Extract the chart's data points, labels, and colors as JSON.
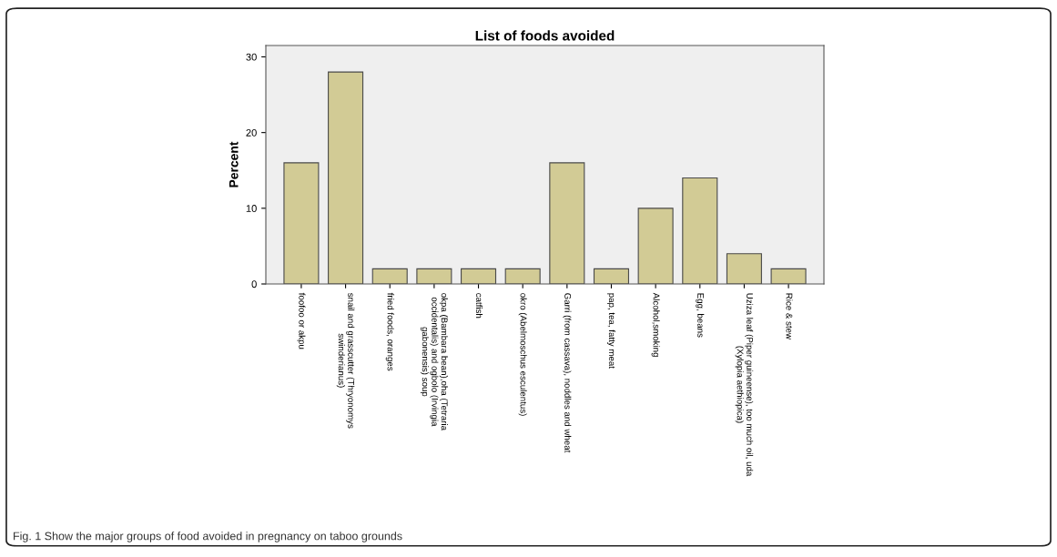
{
  "chart_data": {
    "type": "bar",
    "title": "List of foods avoided",
    "ylabel": "Percent",
    "categories": [
      "foofoo or akpu",
      "snail and grasscutter (Thryonomys\nswinderianus)",
      "fried foods, oranges",
      "okpa (Bambara bean),oha (Tetraria\noccidentalis) and ogbolo (Irvingia\ngabonensis) soup",
      "catfish",
      "okro (Abelmoschus esculentus)",
      "Garri (from cassava), noddles and wheat",
      "pap, tea, fatty meat",
      "Alcohol,smoking",
      "Egg, beans",
      "Uziza leaf (Piper guineense), too much oil, uda\n(Xylopia aethiopica)",
      "Rice & stew"
    ],
    "values": [
      16,
      28,
      2,
      2,
      2,
      2,
      16,
      2,
      10,
      14,
      4,
      2
    ],
    "color": "#d2cb95",
    "ylim": [
      0,
      31.5
    ],
    "yticks": [
      0,
      10,
      20,
      30
    ],
    "grid": false,
    "annotations": [
      "Fig. 1 Show the major groups of food avoided in pregnancy on taboo grounds"
    ]
  }
}
